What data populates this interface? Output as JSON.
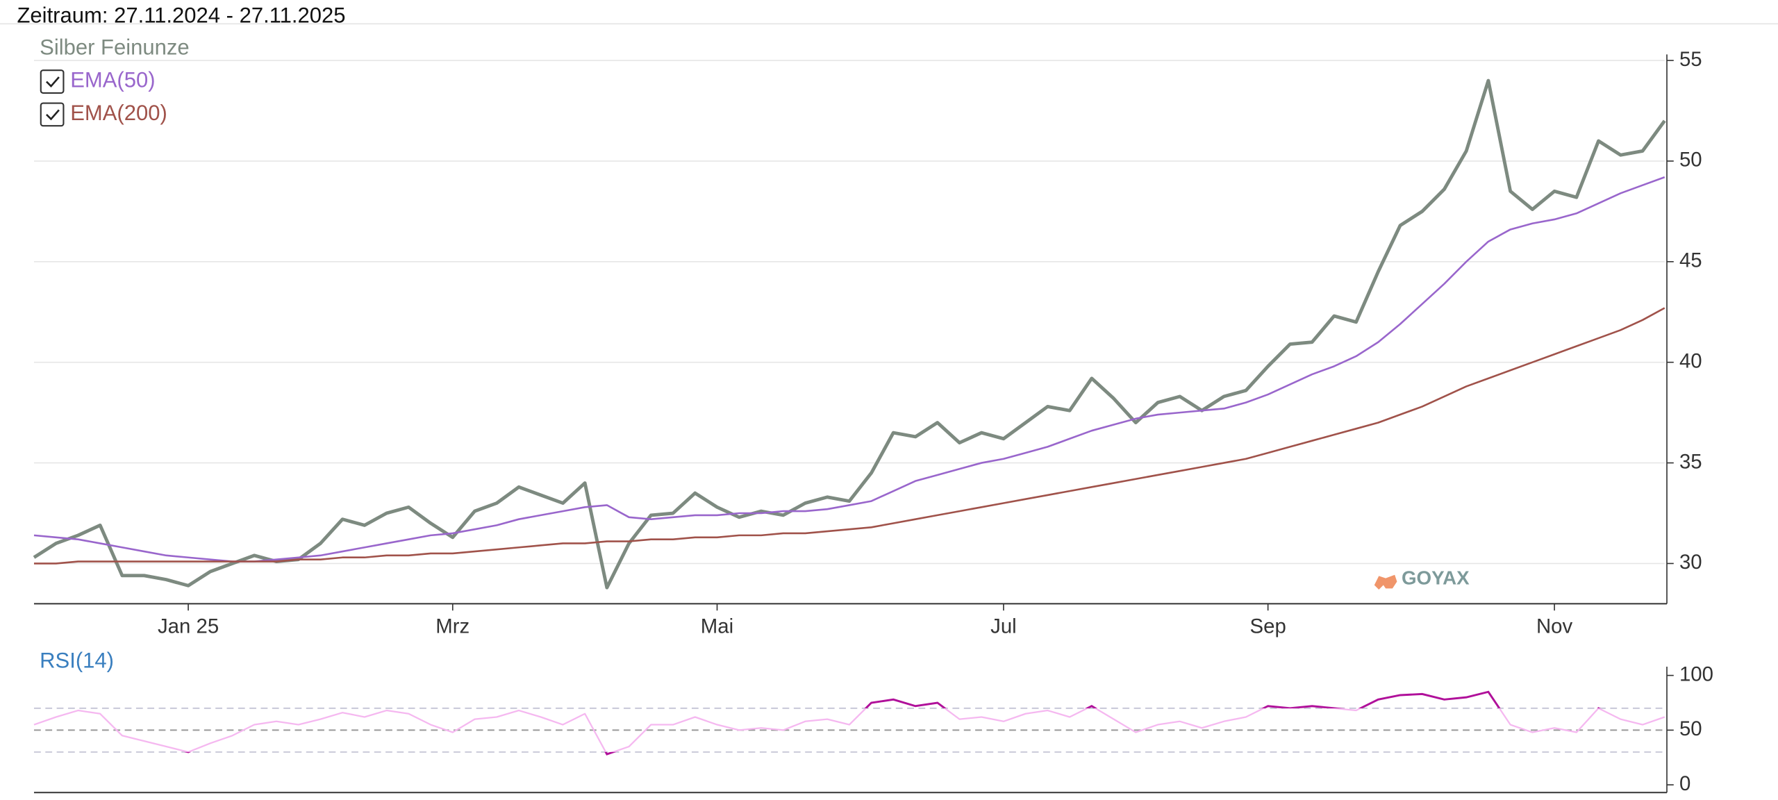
{
  "header": "Zeitraum: 27.11.2024 - 27.11.2025",
  "watermark": "GOYAX",
  "chart_data": [
    {
      "type": "line",
      "categories": [
        null,
        null,
        null,
        null,
        null,
        null,
        null,
        "Jan 25",
        null,
        null,
        null,
        null,
        null,
        null,
        null,
        null,
        null,
        null,
        null,
        "Mrz",
        null,
        null,
        null,
        null,
        null,
        null,
        null,
        null,
        null,
        null,
        null,
        "Mai",
        null,
        null,
        null,
        null,
        null,
        null,
        null,
        null,
        null,
        null,
        null,
        null,
        "Jul",
        null,
        null,
        null,
        null,
        null,
        null,
        null,
        null,
        null,
        null,
        null,
        "Sep",
        null,
        null,
        null,
        null,
        null,
        null,
        null,
        null,
        null,
        null,
        null,
        null,
        "Nov",
        null,
        null,
        null,
        null,
        null
      ],
      "series": [
        {
          "name": "Silber Feinunze",
          "color": "#7d8a80",
          "values": [
            30.3,
            31.0,
            31.4,
            31.9,
            29.4,
            29.4,
            29.2,
            28.9,
            29.6,
            30.0,
            30.4,
            30.1,
            30.2,
            31.0,
            32.2,
            31.9,
            32.5,
            32.8,
            32.0,
            31.3,
            32.6,
            33.0,
            33.8,
            33.4,
            33.0,
            34.0,
            28.8,
            31.0,
            32.4,
            32.5,
            33.5,
            32.8,
            32.3,
            32.6,
            32.4,
            33.0,
            33.3,
            33.1,
            34.5,
            36.5,
            36.3,
            37.0,
            36.0,
            36.5,
            36.2,
            37.0,
            37.8,
            37.6,
            39.2,
            38.2,
            37.0,
            38.0,
            38.3,
            37.6,
            38.3,
            38.6,
            39.8,
            40.9,
            41.0,
            42.3,
            42.0,
            44.5,
            46.8,
            47.5,
            48.6,
            50.5,
            54.0,
            48.5,
            47.6,
            48.5,
            48.2,
            51.0,
            50.3,
            50.5,
            52.0
          ]
        },
        {
          "name": "EMA(50)",
          "color": "#9966cc",
          "values": [
            31.4,
            31.3,
            31.2,
            31.0,
            30.8,
            30.6,
            30.4,
            30.3,
            30.2,
            30.1,
            30.1,
            30.2,
            30.3,
            30.4,
            30.6,
            30.8,
            31.0,
            31.2,
            31.4,
            31.5,
            31.7,
            31.9,
            32.2,
            32.4,
            32.6,
            32.8,
            32.9,
            32.3,
            32.2,
            32.3,
            32.4,
            32.4,
            32.5,
            32.5,
            32.6,
            32.6,
            32.7,
            32.9,
            33.1,
            33.6,
            34.1,
            34.4,
            34.7,
            35.0,
            35.2,
            35.5,
            35.8,
            36.2,
            36.6,
            36.9,
            37.2,
            37.4,
            37.5,
            37.6,
            37.7,
            38.0,
            38.4,
            38.9,
            39.4,
            39.8,
            40.3,
            41.0,
            41.9,
            42.9,
            43.9,
            45.0,
            46.0,
            46.6,
            46.9,
            47.1,
            47.4,
            47.9,
            48.4,
            48.8,
            49.2
          ]
        },
        {
          "name": "EMA(200)",
          "color": "#a0524a",
          "values": [
            30.0,
            30.0,
            30.1,
            30.1,
            30.1,
            30.1,
            30.1,
            30.1,
            30.1,
            30.1,
            30.1,
            30.1,
            30.2,
            30.2,
            30.3,
            30.3,
            30.4,
            30.4,
            30.5,
            30.5,
            30.6,
            30.7,
            30.8,
            30.9,
            31.0,
            31.0,
            31.1,
            31.1,
            31.2,
            31.2,
            31.3,
            31.3,
            31.4,
            31.4,
            31.5,
            31.5,
            31.6,
            31.7,
            31.8,
            32.0,
            32.2,
            32.4,
            32.6,
            32.8,
            33.0,
            33.2,
            33.4,
            33.6,
            33.8,
            34.0,
            34.2,
            34.4,
            34.6,
            34.8,
            35.0,
            35.2,
            35.5,
            35.8,
            36.1,
            36.4,
            36.7,
            37.0,
            37.4,
            37.8,
            38.3,
            38.8,
            39.2,
            39.6,
            40.0,
            40.4,
            40.8,
            41.2,
            41.6,
            42.1,
            42.7
          ]
        }
      ],
      "ylim": [
        28,
        55.3
      ],
      "yticks": [
        30,
        35,
        40,
        45,
        50,
        55
      ],
      "grid": true,
      "legend": "top-left"
    },
    {
      "type": "line",
      "categories": [
        null,
        null,
        null,
        null,
        null,
        null,
        null,
        null,
        null,
        null,
        null,
        null,
        null,
        null,
        null,
        null,
        null,
        null,
        null,
        null,
        null,
        null,
        null,
        null,
        null,
        null,
        null,
        null,
        null,
        null,
        null,
        null,
        null,
        null,
        null,
        null,
        null,
        null,
        null,
        null,
        null,
        null,
        null,
        null,
        null,
        null,
        null,
        null,
        null,
        null,
        null,
        null,
        null,
        null,
        null,
        null,
        null,
        null,
        null,
        null,
        null,
        null,
        null,
        null,
        null,
        null,
        null,
        null,
        null,
        null,
        null,
        null,
        null,
        null,
        null
      ],
      "series": [
        {
          "name": "RSI(14)",
          "color": "#f5b8f0",
          "highlight_color": "#b0109a",
          "values": [
            55,
            62,
            68,
            65,
            45,
            40,
            35,
            30,
            38,
            45,
            55,
            58,
            55,
            60,
            66,
            62,
            68,
            65,
            55,
            48,
            60,
            62,
            68,
            62,
            55,
            65,
            28,
            35,
            55,
            55,
            62,
            55,
            50,
            52,
            50,
            58,
            60,
            55,
            75,
            78,
            72,
            75,
            60,
            62,
            58,
            65,
            68,
            62,
            72,
            60,
            48,
            55,
            58,
            52,
            58,
            62,
            72,
            70,
            72,
            70,
            68,
            78,
            82,
            83,
            78,
            80,
            85,
            55,
            48,
            52,
            48,
            70,
            60,
            55,
            62
          ]
        }
      ],
      "ylim": [
        -7,
        108
      ],
      "yticks": [
        0,
        50,
        100
      ],
      "levels": [
        30,
        50,
        70
      ],
      "legend": "top-left"
    }
  ]
}
